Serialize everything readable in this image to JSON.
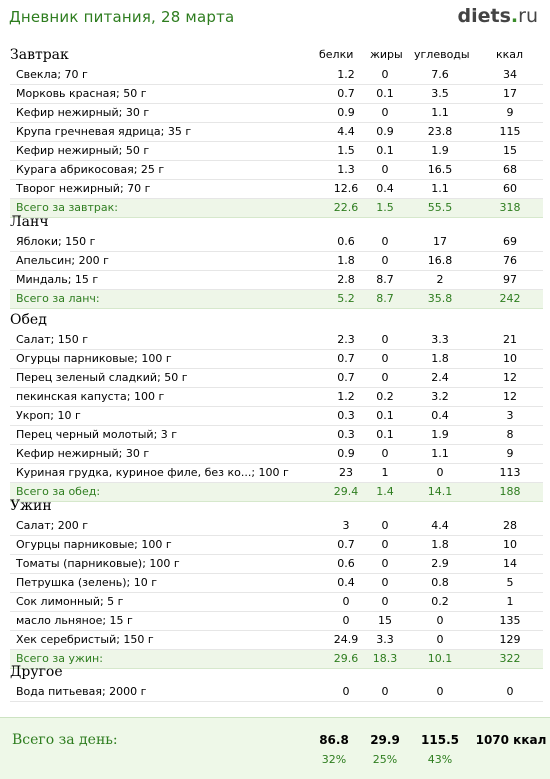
{
  "header": {
    "title": "Дневник питания, 28 марта",
    "logo_main": "diets",
    "logo_dot": ".",
    "logo_tld": "ru"
  },
  "columns": {
    "protein": "белки",
    "fat": "жиры",
    "carbs": "углеводы",
    "kcal": "ккал"
  },
  "sections": [
    {
      "title": "Завтрак",
      "rows": [
        [
          "Свекла; 70 г",
          "1.2",
          "0",
          "7.6",
          "34"
        ],
        [
          "Морковь красная; 50 г",
          "0.7",
          "0.1",
          "3.5",
          "17"
        ],
        [
          "Кефир нежирный; 30 г",
          "0.9",
          "0",
          "1.1",
          "9"
        ],
        [
          "Крупа гречневая ядрица; 35 г",
          "4.4",
          "0.9",
          "23.8",
          "115"
        ],
        [
          "Кефир нежирный; 50 г",
          "1.5",
          "0.1",
          "1.9",
          "15"
        ],
        [
          "Курага абрикосовая; 25 г",
          "1.3",
          "0",
          "16.5",
          "68"
        ],
        [
          "Творог нежирный; 70 г",
          "12.6",
          "0.4",
          "1.1",
          "60"
        ]
      ],
      "total": [
        "Всего за завтрак:",
        "22.6",
        "1.5",
        "55.5",
        "318"
      ]
    },
    {
      "title": "Ланч",
      "rows": [
        [
          "Яблоки; 150 г",
          "0.6",
          "0",
          "17",
          "69"
        ],
        [
          "Апельсин; 200 г",
          "1.8",
          "0",
          "16.8",
          "76"
        ],
        [
          "Миндаль; 15 г",
          "2.8",
          "8.7",
          "2",
          "97"
        ]
      ],
      "total": [
        "Всего за ланч:",
        "5.2",
        "8.7",
        "35.8",
        "242"
      ]
    },
    {
      "title": "Обед",
      "rows": [
        [
          "Салат; 150 г",
          "2.3",
          "0",
          "3.3",
          "21"
        ],
        [
          "Огурцы парниковые; 100 г",
          "0.7",
          "0",
          "1.8",
          "10"
        ],
        [
          "Перец зеленый сладкий; 50 г",
          "0.7",
          "0",
          "2.4",
          "12"
        ],
        [
          "пекинская капуста; 100 г",
          "1.2",
          "0.2",
          "3.2",
          "12"
        ],
        [
          "Укроп; 10 г",
          "0.3",
          "0.1",
          "0.4",
          "3"
        ],
        [
          "Перец черный молотый; 3 г",
          "0.3",
          "0.1",
          "1.9",
          "8"
        ],
        [
          "Кефир нежирный; 30 г",
          "0.9",
          "0",
          "1.1",
          "9"
        ],
        [
          "Куриная грудка, куриное филе, без ко...; 100 г",
          "23",
          "1",
          "0",
          "113"
        ]
      ],
      "total": [
        "Всего за обед:",
        "29.4",
        "1.4",
        "14.1",
        "188"
      ]
    },
    {
      "title": "Ужин",
      "rows": [
        [
          "Салат; 200 г",
          "3",
          "0",
          "4.4",
          "28"
        ],
        [
          "Огурцы парниковые; 100 г",
          "0.7",
          "0",
          "1.8",
          "10"
        ],
        [
          "Томаты (парниковые); 100 г",
          "0.6",
          "0",
          "2.9",
          "14"
        ],
        [
          "Петрушка (зелень); 10 г",
          "0.4",
          "0",
          "0.8",
          "5"
        ],
        [
          "Сок лимонный; 5 г",
          "0",
          "0",
          "0.2",
          "1"
        ],
        [
          "масло льняное; 15 г",
          "0",
          "15",
          "0",
          "135"
        ],
        [
          "Хек серебристый; 150 г",
          "24.9",
          "3.3",
          "0",
          "129"
        ]
      ],
      "total": [
        "Всего за ужин:",
        "29.6",
        "18.3",
        "10.1",
        "322"
      ]
    },
    {
      "title": "Другое",
      "rows": [
        [
          "Вода питьевая; 2000 г",
          "0",
          "0",
          "0",
          "0"
        ]
      ],
      "total": null
    }
  ],
  "day_total": {
    "label": "Всего за день:",
    "protein": "86.8",
    "fat": "29.9",
    "carbs": "115.5",
    "kcal": "1070 ккал",
    "protein_pct": "32%",
    "fat_pct": "25%",
    "carbs_pct": "43%"
  }
}
